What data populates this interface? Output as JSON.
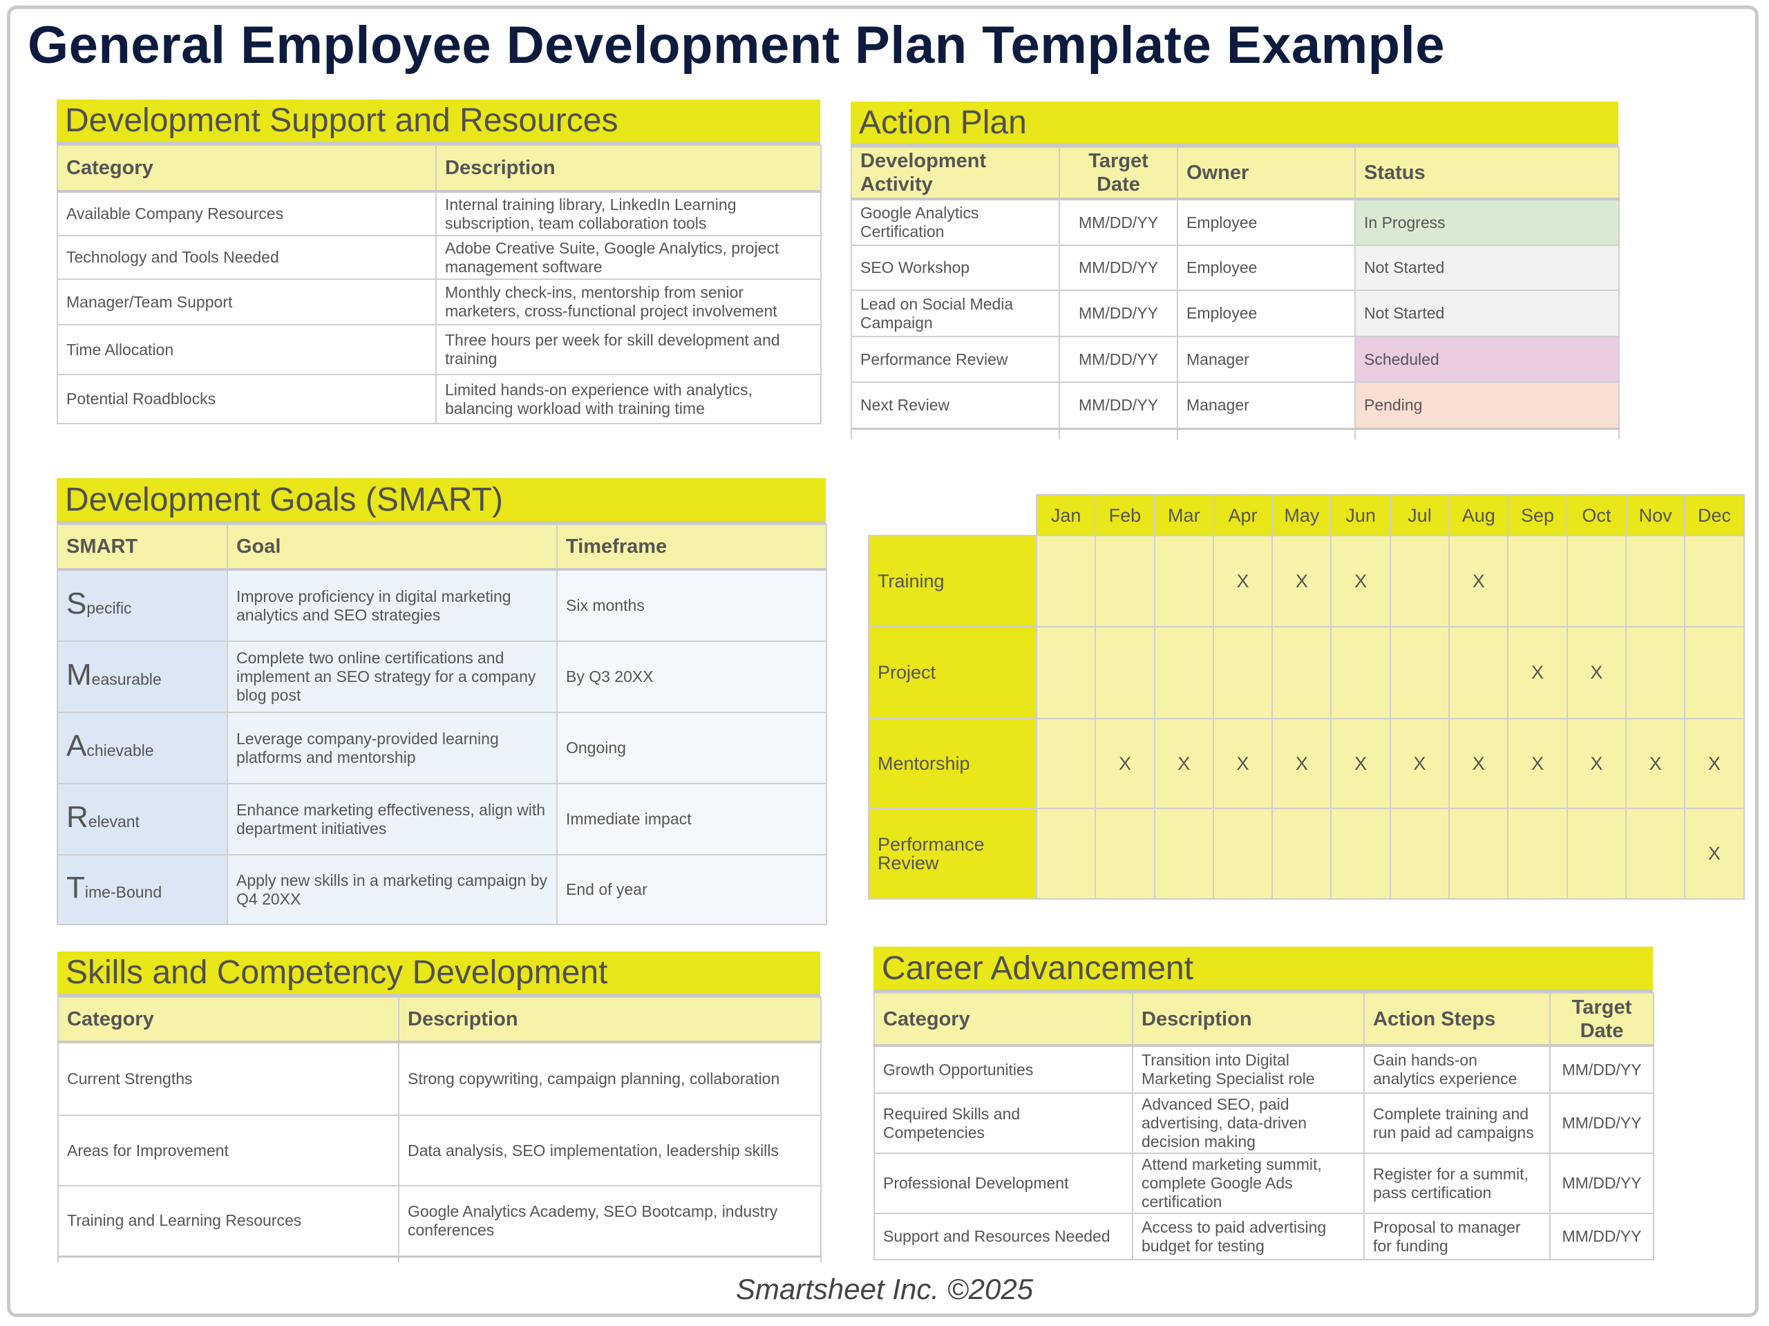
{
  "title": "General Employee Development Plan Template Example",
  "support": {
    "title": "Development Support and Resources",
    "headers": [
      "Category",
      "Description"
    ],
    "rows": [
      [
        "Available Company Resources",
        "Internal training library, LinkedIn Learning subscription, team collaboration tools"
      ],
      [
        "Technology and Tools Needed",
        "Adobe Creative Suite, Google Analytics, project management software"
      ],
      [
        "Manager/Team Support",
        "Monthly check-ins, mentorship from senior marketers, cross-functional project involvement"
      ],
      [
        "Time Allocation",
        "Three hours per week for skill development and training"
      ],
      [
        "Potential Roadblocks",
        "Limited hands-on experience with analytics, balancing workload with training time"
      ]
    ]
  },
  "action_plan": {
    "title": "Action Plan",
    "headers": [
      "Development Activity",
      "Target Date",
      "Owner",
      "Status"
    ],
    "rows": [
      [
        "Google Analytics Certification",
        "MM/DD/YY",
        "Employee",
        "In Progress"
      ],
      [
        "SEO Workshop",
        "MM/DD/YY",
        "Employee",
        "Not Started"
      ],
      [
        "Lead on Social Media Campaign",
        "MM/DD/YY",
        "Employee",
        "Not Started"
      ],
      [
        "Performance Review",
        "MM/DD/YY",
        "Manager",
        "Scheduled"
      ],
      [
        "Next Review",
        "MM/DD/YY",
        "Manager",
        "Pending"
      ]
    ],
    "status_colors": {
      "In Progress": "#d9ead3",
      "Not Started": "#f2f2f2",
      "Scheduled": "#ebcde2",
      "Pending": "#f9dfd2"
    }
  },
  "goals": {
    "title": "Development Goals (SMART)",
    "headers": [
      "SMART",
      "Goal",
      "Timeframe"
    ],
    "rows": [
      {
        "letter": "S",
        "rest": "pecific",
        "goal": "Improve proficiency in digital marketing analytics and SEO strategies",
        "timeframe": "Six months"
      },
      {
        "letter": "M",
        "rest": "easurable",
        "goal": "Complete two online certifications and implement an SEO strategy for a company blog post",
        "timeframe": "By Q3 20XX"
      },
      {
        "letter": "A",
        "rest": "chievable",
        "goal": "Leverage company-provided learning platforms and mentorship",
        "timeframe": "Ongoing"
      },
      {
        "letter": "R",
        "rest": "elevant",
        "goal": "Enhance marketing effectiveness, align with department initiatives",
        "timeframe": "Immediate impact"
      },
      {
        "letter": "T",
        "rest": "ime-Bound",
        "goal": "Apply new skills in a marketing campaign by Q4 20XX",
        "timeframe": "End of year"
      }
    ]
  },
  "calendar": {
    "months": [
      "Jan",
      "Feb",
      "Mar",
      "Apr",
      "May",
      "Jun",
      "Jul",
      "Aug",
      "Sep",
      "Oct",
      "Nov",
      "Dec"
    ],
    "rows": [
      {
        "label": "Training",
        "marks": [
          "",
          "",
          "",
          "X",
          "X",
          "X",
          "",
          "X",
          "",
          "",
          "",
          ""
        ]
      },
      {
        "label": "Project",
        "marks": [
          "",
          "",
          "",
          "",
          "",
          "",
          "",
          "",
          "X",
          "X",
          "",
          ""
        ]
      },
      {
        "label": "Mentorship",
        "marks": [
          "",
          "X",
          "X",
          "X",
          "X",
          "X",
          "X",
          "X",
          "X",
          "X",
          "X",
          "X"
        ]
      },
      {
        "label": "Performance Review",
        "marks": [
          "",
          "",
          "",
          "",
          "",
          "",
          "",
          "",
          "",
          "",
          "",
          "X"
        ]
      }
    ]
  },
  "skills": {
    "title": "Skills and Competency Development",
    "headers": [
      "Category",
      "Description"
    ],
    "rows": [
      [
        "Current Strengths",
        "Strong copywriting, campaign planning, collaboration"
      ],
      [
        "Areas for Improvement",
        "Data analysis, SEO implementation, leadership skills"
      ],
      [
        "Training and Learning Resources",
        "Google Analytics Academy, SEO Bootcamp, industry conferences"
      ]
    ]
  },
  "career": {
    "title": "Career Advancement",
    "headers": [
      "Category",
      "Description",
      "Action Steps",
      "Target Date"
    ],
    "rows": [
      [
        "Growth Opportunities",
        "Transition into Digital Marketing Specialist role",
        "Gain hands-on analytics experience",
        "MM/DD/YY"
      ],
      [
        "Required Skills and Competencies",
        "Advanced SEO, paid advertising, data-driven decision making",
        "Complete training and run paid ad campaigns",
        "MM/DD/YY"
      ],
      [
        "Professional Development",
        "Attend marketing summit, complete Google Ads certification",
        "Register for a summit, pass certification",
        "MM/DD/YY"
      ],
      [
        "Support and Resources Needed",
        "Access to paid advertising budget for testing",
        "Proposal to manager for funding",
        "MM/DD/YY"
      ]
    ]
  },
  "footer": "Smartsheet Inc. ©2025"
}
